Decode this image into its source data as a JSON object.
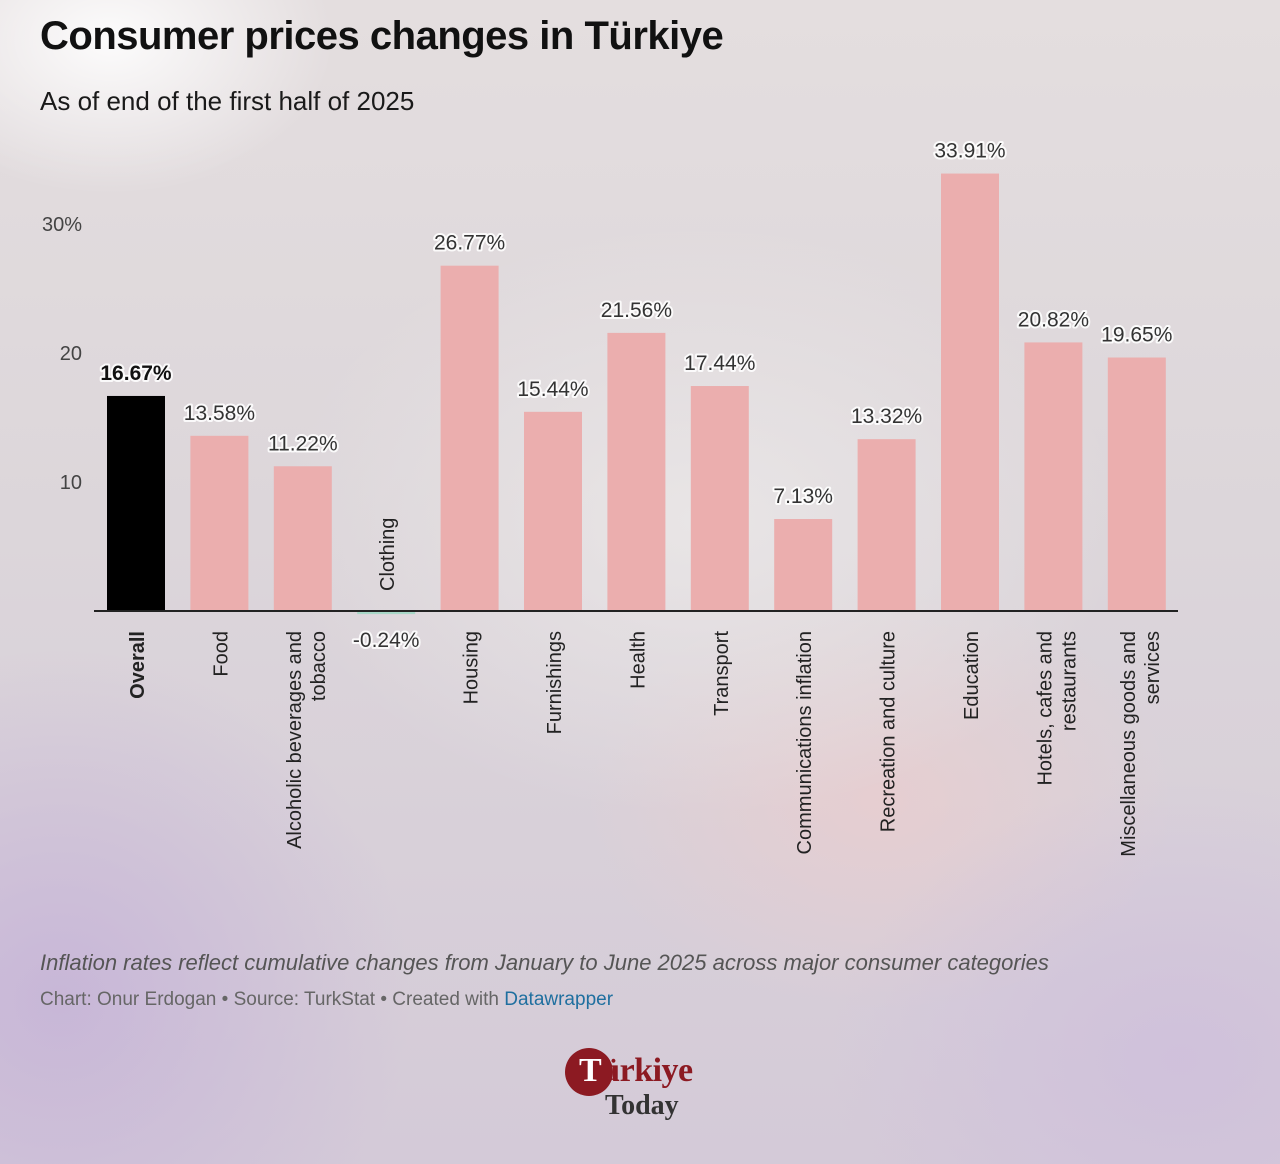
{
  "header": {
    "title": "Consumer prices changes in Türkiye",
    "subtitle": "As of end of the first half of 2025"
  },
  "footer": {
    "notes": "Inflation rates reflect cumulative changes from January to June 2025 across major consumer categories",
    "credits_prefix": "Chart: Onur Erdogan • Source: TurkStat • Created with ",
    "credits_link": "Datawrapper"
  },
  "logo": {
    "brand_first": "T",
    "brand_rest": "ürkiye",
    "sub": "Today"
  },
  "colors": {
    "bar": "#ebaeae",
    "highlight": "#000000",
    "negative": "#a8d8c8",
    "axis": "#222222"
  },
  "chart_data": {
    "type": "bar",
    "title": "Consumer prices changes in Türkiye",
    "subtitle": "As of end of the first half of 2025",
    "categories": [
      "Overall",
      "Food",
      "Alcoholic beverages and tobacco",
      "Clothing",
      "Housing",
      "Furnishings",
      "Health",
      "Transport",
      "Communications inflation",
      "Recreation and culture",
      "Education",
      "Hotels, cafes and restaurants",
      "Miscellaneous goods and services"
    ],
    "values": [
      16.67,
      13.58,
      11.22,
      -0.24,
      26.77,
      15.44,
      21.56,
      17.44,
      7.13,
      13.32,
      33.91,
      20.82,
      19.65
    ],
    "value_labels": [
      "16.67%",
      "13.58%",
      "11.22%",
      "-0.24%",
      "26.77%",
      "15.44%",
      "21.56%",
      "17.44%",
      "7.13%",
      "13.32%",
      "33.91%",
      "20.82%",
      "19.65%"
    ],
    "highlight": "Overall",
    "yticks": [
      10,
      20,
      30
    ],
    "ytick_labels": [
      "10",
      "20",
      "30%"
    ],
    "ylim": [
      0,
      35
    ],
    "grid": false,
    "legend": "none"
  }
}
